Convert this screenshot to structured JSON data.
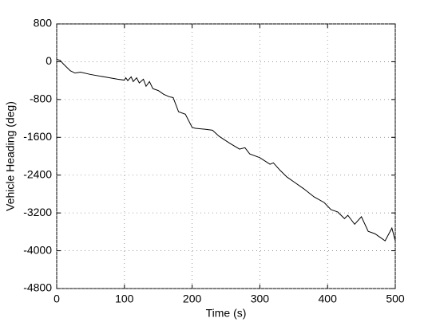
{
  "chart_data": {
    "type": "line",
    "xlabel": "Time (s)",
    "ylabel": "Vehicle Heading (deg)",
    "xlim": [
      0,
      500
    ],
    "xticks": [
      0,
      100,
      200,
      300,
      400,
      500
    ],
    "ylim": [
      -4800,
      800
    ],
    "yticks": [
      -4800,
      -4000,
      -3200,
      -2400,
      -1600,
      -800,
      0,
      800
    ],
    "grid": true,
    "x": [
      0,
      5,
      10,
      20,
      27,
      35,
      50,
      70,
      90,
      100,
      102,
      105,
      110,
      113,
      118,
      122,
      128,
      132,
      137,
      142,
      150,
      158,
      166,
      172,
      180,
      190,
      200,
      205,
      220,
      230,
      240,
      255,
      270,
      278,
      285,
      300,
      315,
      320,
      330,
      340,
      350,
      365,
      380,
      395,
      405,
      415,
      425,
      430,
      440,
      450,
      460,
      470,
      475,
      485,
      495,
      500
    ],
    "series": [
      {
        "color": "#000000",
        "values": [
          50,
          30,
          -50,
          -190,
          -240,
          -220,
          -270,
          -320,
          -370,
          -390,
          -340,
          -400,
          -320,
          -420,
          -340,
          -450,
          -370,
          -520,
          -420,
          -570,
          -610,
          -690,
          -740,
          -760,
          -1060,
          -1110,
          -1390,
          -1410,
          -1430,
          -1450,
          -1580,
          -1720,
          -1850,
          -1820,
          -1950,
          -2030,
          -2170,
          -2140,
          -2300,
          -2440,
          -2540,
          -2690,
          -2860,
          -2980,
          -3130,
          -3180,
          -3320,
          -3250,
          -3440,
          -3280,
          -3590,
          -3640,
          -3690,
          -3790,
          -3520,
          -3790
        ]
      }
    ]
  }
}
